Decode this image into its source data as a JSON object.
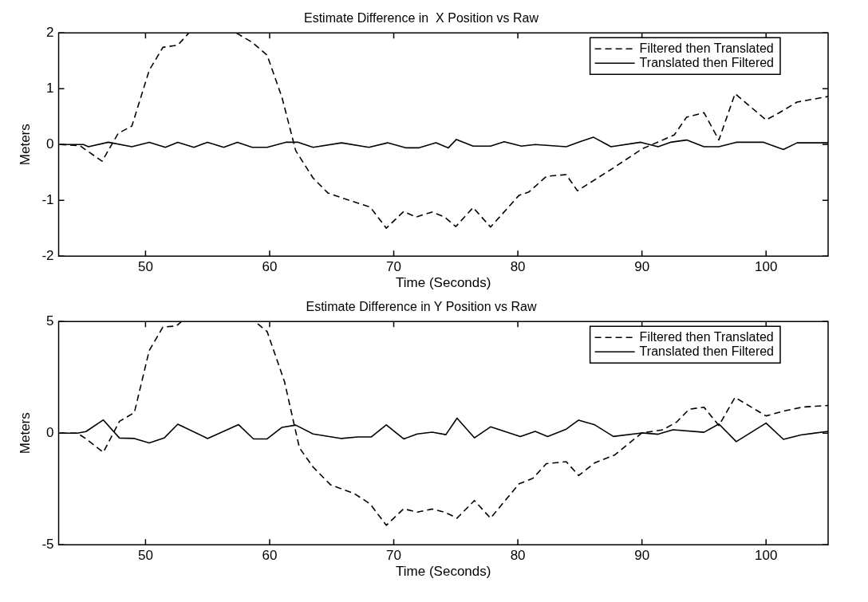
{
  "chart_data": [
    {
      "type": "line",
      "title": "Estimate Difference in  X Position vs Raw",
      "xlabel": "Time (Seconds)",
      "ylabel": "Meters",
      "xlim": [
        43,
        105
      ],
      "xticks": [
        50,
        60,
        70,
        80,
        90,
        100
      ],
      "ylim": [
        -2,
        2
      ],
      "yticks": [
        -2,
        -1,
        0,
        1,
        2
      ],
      "grid": false,
      "legend": "top right",
      "marker": "none",
      "series": [
        {
          "name": "Filtered then Translated",
          "color": "#000000",
          "line_style": "dashed",
          "x": [
            43.1,
            44.7,
            46.5,
            47.8,
            48.9,
            50.3,
            51.4,
            52.6,
            53.5,
            57.3,
            58.6,
            59.8,
            61.0,
            62.1,
            63.5,
            64.7,
            66.0,
            68.1,
            69.4,
            70.8,
            71.8,
            73.1,
            74.1,
            75.0,
            76.4,
            77.8,
            80.1,
            80.9,
            82.3,
            83.9,
            84.8,
            87.7,
            90.0,
            92.6,
            93.6,
            95.0,
            96.2,
            97.5,
            100.0,
            101.0,
            102.5,
            105.0
          ],
          "values": [
            0,
            -0.02,
            -0.3,
            0.2,
            0.33,
            1.33,
            1.74,
            1.78,
            2.0,
            2.0,
            1.83,
            1.6,
            0.84,
            -0.11,
            -0.6,
            -0.87,
            -0.97,
            -1.12,
            -1.5,
            -1.2,
            -1.3,
            -1.21,
            -1.3,
            -1.47,
            -1.13,
            -1.48,
            -0.91,
            -0.85,
            -0.57,
            -0.54,
            -0.83,
            -0.42,
            -0.08,
            0.17,
            0.49,
            0.57,
            0.08,
            0.91,
            0.44,
            0.56,
            0.76,
            0.86
          ]
        },
        {
          "name": "Translated then Filtered",
          "color": "#000000",
          "line_style": "solid",
          "x": [
            43.1,
            45.0,
            45.4,
            47.0,
            48.9,
            50.3,
            51.6,
            52.6,
            53.9,
            55.0,
            56.3,
            57.4,
            58.6,
            59.8,
            61.3,
            62.3,
            63.5,
            65.8,
            68.0,
            69.5,
            71.0,
            72.0,
            73.4,
            74.4,
            75.05,
            76.4,
            77.8,
            78.9,
            80.3,
            81.4,
            83.9,
            85.0,
            86.1,
            87.5,
            89.9,
            91.3,
            92.3,
            93.6,
            95.0,
            96.2,
            97.6,
            99.8,
            101.4,
            102.5,
            105.0
          ],
          "values": [
            0,
            0,
            -0.04,
            0.04,
            -0.04,
            0.04,
            -0.05,
            0.04,
            -0.05,
            0.04,
            -0.05,
            0.04,
            -0.05,
            -0.05,
            0.04,
            0.04,
            -0.05,
            0.03,
            -0.05,
            0.03,
            -0.06,
            -0.06,
            0.03,
            -0.06,
            0.09,
            -0.03,
            -0.03,
            0.05,
            -0.03,
            0,
            -0.04,
            0.05,
            0.13,
            -0.04,
            0.04,
            -0.04,
            0.04,
            0.08,
            -0.04,
            -0.04,
            0.04,
            0.04,
            -0.09,
            0.03,
            0.03
          ]
        }
      ]
    },
    {
      "type": "line",
      "title": "Estimate Difference in Y Position vs Raw",
      "xlabel": "Time (Seconds)",
      "ylabel": "Meters",
      "xlim": [
        43,
        105
      ],
      "xticks": [
        50,
        60,
        70,
        80,
        90,
        100
      ],
      "ylim": [
        -5,
        5
      ],
      "yticks": [
        -5,
        0,
        5
      ],
      "grid": false,
      "legend": "top right",
      "marker": "none",
      "series": [
        {
          "name": "Filtered then Translated",
          "color": "#000000",
          "line_style": "dashed",
          "x": [
            43.1,
            44.5,
            45.2,
            46.6,
            47.9,
            49.1,
            50.3,
            51.4,
            52.5,
            52.9,
            58.8,
            59.8,
            61.2,
            62.4,
            63.5,
            64.9,
            66.8,
            68.1,
            69.4,
            70.8,
            71.9,
            73.1,
            74.2,
            75.1,
            76.5,
            77.8,
            80.1,
            81.2,
            82.3,
            83.9,
            84.9,
            86.2,
            87.8,
            90.0,
            91.7,
            92.8,
            93.8,
            95.0,
            96.2,
            97.5,
            100.0,
            101.5,
            103.0,
            105.0
          ],
          "values": [
            0,
            0,
            -0.25,
            -0.86,
            0.53,
            0.92,
            3.7,
            4.75,
            4.8,
            5,
            5,
            4.55,
            2.3,
            -0.66,
            -1.52,
            -2.31,
            -2.7,
            -3.17,
            -4.13,
            -3.39,
            -3.54,
            -3.4,
            -3.56,
            -3.81,
            -3.02,
            -3.81,
            -2.27,
            -2.03,
            -1.37,
            -1.28,
            -1.9,
            -1.33,
            -0.98,
            0.01,
            0.15,
            0.5,
            1.07,
            1.16,
            0.34,
            1.6,
            0.77,
            1.0,
            1.17,
            1.24
          ]
        },
        {
          "name": "Translated then Filtered",
          "color": "#000000",
          "line_style": "solid",
          "x": [
            43.1,
            44.5,
            45.2,
            46.6,
            47.9,
            49.1,
            50.3,
            51.5,
            52.6,
            55.0,
            57.5,
            58.7,
            59.8,
            61.0,
            62.1,
            63.5,
            65.8,
            67.1,
            68.2,
            69.4,
            70.8,
            71.9,
            73.1,
            74.2,
            75.1,
            76.5,
            77.8,
            80.2,
            81.4,
            82.4,
            83.9,
            84.9,
            86.2,
            87.7,
            90.0,
            91.3,
            92.5,
            95.0,
            96.2,
            97.6,
            100.0,
            101.4,
            102.8,
            105.0
          ],
          "values": [
            0,
            0,
            0.07,
            0.59,
            -0.22,
            -0.24,
            -0.44,
            -0.22,
            0.4,
            -0.24,
            0.38,
            -0.26,
            -0.26,
            0.26,
            0.36,
            -0.04,
            -0.24,
            -0.17,
            -0.17,
            0.37,
            -0.26,
            -0.04,
            0.04,
            -0.07,
            0.67,
            -0.21,
            0.28,
            -0.15,
            0.08,
            -0.15,
            0.18,
            0.58,
            0.37,
            -0.15,
            0.01,
            -0.05,
            0.15,
            0.04,
            0.41,
            -0.38,
            0.45,
            -0.28,
            -0.08,
            0.08
          ]
        }
      ]
    }
  ]
}
